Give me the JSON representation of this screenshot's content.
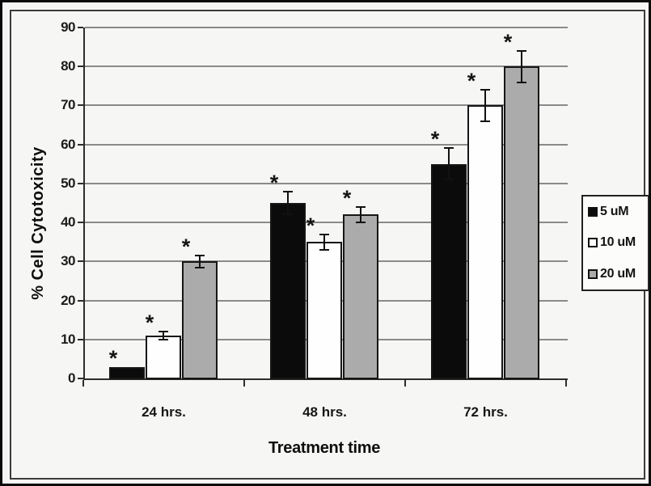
{
  "figure": {
    "background": "#f6f6f4",
    "outer_border_color": "#0a0a0a",
    "inner_border_color": "#3d3d3d",
    "gridline_color": "#8a8a8a",
    "axis_color": "#2d2d2d"
  },
  "chart_data": {
    "type": "bar",
    "title": "",
    "xlabel": "Treatment time",
    "ylabel": "% Cell Cytotoxicity",
    "categories": [
      "24 hrs.",
      "48 hrs.",
      "72 hrs."
    ],
    "series": [
      {
        "name": "5 uM",
        "color": "#0b0b0b",
        "values": [
          3,
          45,
          55
        ],
        "errors": [
          0,
          3,
          4
        ],
        "significance": [
          "*",
          "*",
          "*"
        ]
      },
      {
        "name": "10 uM",
        "color": "#fefefe",
        "values": [
          11,
          35,
          70
        ],
        "errors": [
          1,
          2,
          4
        ],
        "significance": [
          "*",
          "*",
          "*"
        ]
      },
      {
        "name": "20 uM",
        "color": "#ababab",
        "values": [
          30,
          42,
          80
        ],
        "errors": [
          1.5,
          2,
          4
        ],
        "significance": [
          "*",
          "*",
          "*"
        ]
      }
    ],
    "ylim": [
      0,
      90
    ],
    "ytick_step": 10,
    "grid": true,
    "legend_position": "right",
    "error_bars": true,
    "bar_border_color": "#161616"
  }
}
